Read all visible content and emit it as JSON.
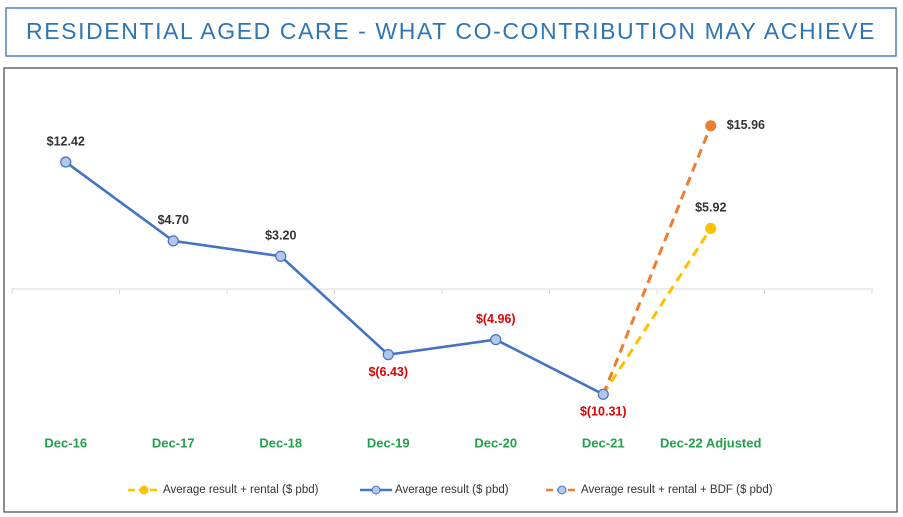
{
  "chart_data": {
    "type": "line",
    "title": "RESIDENTIAL AGED CARE - WHAT CO-CONTRIBUTION MAY ACHIEVE",
    "categories": [
      "Dec-16",
      "Dec-17",
      "Dec-18",
      "Dec-19",
      "Dec-20",
      "Dec-21",
      "Dec-22 Adjusted"
    ],
    "ylim": [
      -14,
      18
    ],
    "series": [
      {
        "name": "Average result + rental ($ pbd)",
        "color": "#ffc000",
        "dashed": true,
        "values": [
          null,
          null,
          null,
          null,
          null,
          -10.31,
          5.92
        ],
        "value_labels": [
          null,
          null,
          null,
          null,
          null,
          null,
          "$5.92"
        ]
      },
      {
        "name": "Average result ($ pbd)",
        "color": "#4472c4",
        "dashed": false,
        "values": [
          12.42,
          4.7,
          3.2,
          -6.43,
          -4.96,
          -10.31,
          null
        ],
        "value_labels": [
          "$12.42",
          "$4.70",
          "$3.20",
          "$(6.43)",
          "$(4.96)",
          "$(10.31)",
          null
        ]
      },
      {
        "name": "Average result + rental + BDF ($ pbd)",
        "color": "#ed7d31",
        "dashed": true,
        "values": [
          null,
          null,
          null,
          null,
          null,
          -10.31,
          15.96
        ],
        "value_labels": [
          null,
          null,
          null,
          null,
          null,
          null,
          "$15.96"
        ]
      }
    ]
  }
}
